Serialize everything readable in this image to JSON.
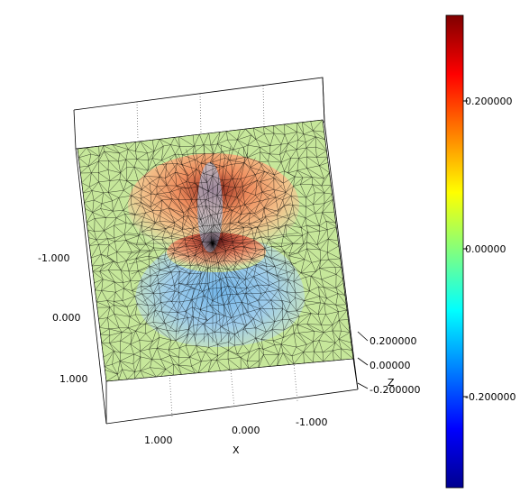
{
  "chart_data": {
    "type": "surface",
    "title": "",
    "xlabel": "X",
    "ylabel": "",
    "zlabel": "Z",
    "x_ticks": [
      "1.000",
      "0.000",
      "-1.000"
    ],
    "y_ticks": [
      "-1.000",
      "0.000",
      "1.000"
    ],
    "z_ticks": [
      "0.200000",
      "0.00000",
      "-0.200000"
    ],
    "xlim": [
      -1.2,
      1.2
    ],
    "ylim": [
      -1.2,
      1.2
    ],
    "zlim": [
      -0.2,
      0.2
    ],
    "surface": "triangulated mesh with two dome-shaped lobes (one positive peak, one shallower positive peak) over a flat plane",
    "colorbar": {
      "ticks": [
        "0.200000",
        "0.00000",
        "-0.200000"
      ],
      "range": [
        -0.33,
        0.33
      ],
      "colormap": [
        "#00008f",
        "#0000ff",
        "#0080ff",
        "#00ffff",
        "#80ff80",
        "#ffff00",
        "#ff8000",
        "#ff0000",
        "#800000"
      ]
    },
    "grid": true
  }
}
